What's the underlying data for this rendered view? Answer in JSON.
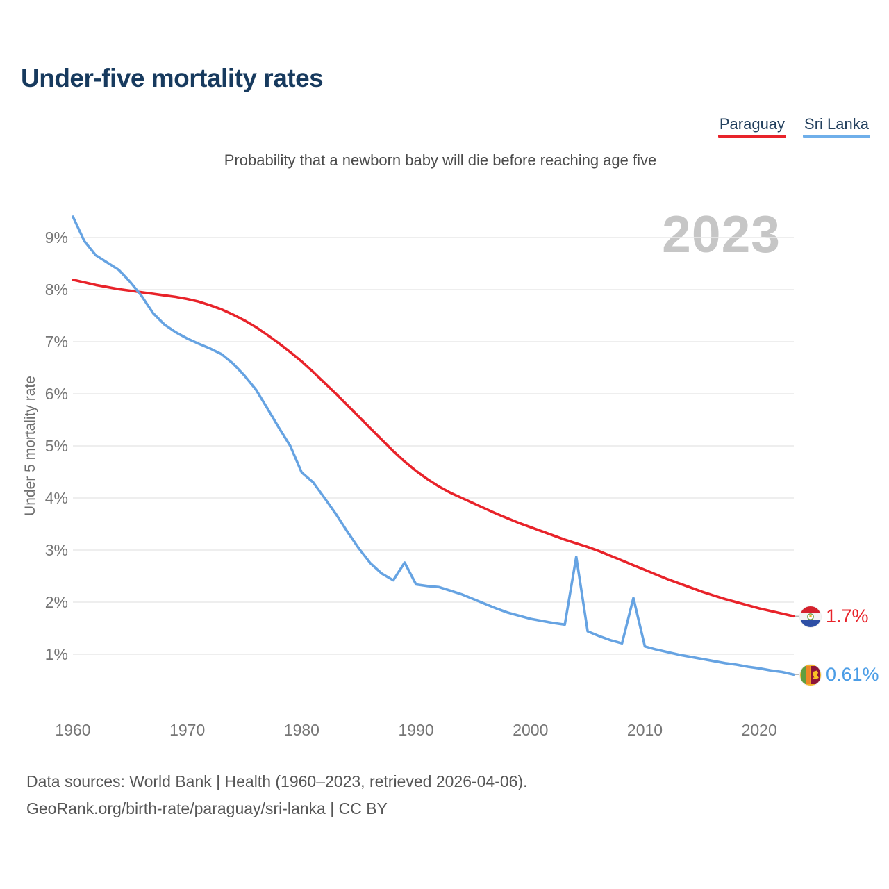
{
  "header": {
    "title": "Under-five mortality rates",
    "subtitle": "Probability that a newborn baby will die before reaching age five"
  },
  "legend": {
    "items": [
      {
        "label": "Paraguay",
        "color": "#e8232a"
      },
      {
        "label": "Sri Lanka",
        "color": "#6fafea"
      }
    ]
  },
  "chart": {
    "watermark_year": "2023",
    "y_axis_label": "Under 5 mortality rate"
  },
  "end_labels": {
    "paraguay": {
      "value_label": "1.7%",
      "color": "#e8232a",
      "flag_icon": "paraguay-flag"
    },
    "sri_lanka": {
      "value_label": "0.61%",
      "color": "#4b9de6",
      "flag_icon": "sri-lanka-flag"
    }
  },
  "footer": {
    "line1": "Data sources: World Bank | Health (1960–2023, retrieved 2026-04-06).",
    "line2": "GeoRank.org/birth-rate/paraguay/sri-lanka | CC BY"
  },
  "chart_data": {
    "type": "line",
    "title": "Under-five mortality rates",
    "subtitle": "Probability that a newborn baby will die before reaching age five",
    "xlabel": "",
    "ylabel": "Under 5 mortality rate",
    "ylim": [
      0.4,
      9.6
    ],
    "xlim": [
      1960,
      2023
    ],
    "grid": "horizontal",
    "legend_position": "top-right",
    "yticks": {
      "values": [
        1,
        2,
        3,
        4,
        5,
        6,
        7,
        8,
        9
      ],
      "labels": [
        "1%",
        "2%",
        "3%",
        "4%",
        "5%",
        "6%",
        "7%",
        "8%",
        "9%"
      ]
    },
    "xticks": {
      "values": [
        1960,
        1970,
        1980,
        1990,
        2000,
        2010,
        2020
      ],
      "labels": [
        "1960",
        "1970",
        "1980",
        "1990",
        "2000",
        "2010",
        "2020"
      ]
    },
    "x": [
      1960,
      1961,
      1962,
      1963,
      1964,
      1965,
      1966,
      1967,
      1968,
      1969,
      1970,
      1971,
      1972,
      1973,
      1974,
      1975,
      1976,
      1977,
      1978,
      1979,
      1980,
      1981,
      1982,
      1983,
      1984,
      1985,
      1986,
      1987,
      1988,
      1989,
      1990,
      1991,
      1992,
      1993,
      1994,
      1995,
      1996,
      1997,
      1998,
      1999,
      2000,
      2001,
      2002,
      2003,
      2004,
      2005,
      2006,
      2007,
      2008,
      2009,
      2010,
      2011,
      2012,
      2013,
      2014,
      2015,
      2016,
      2017,
      2018,
      2019,
      2020,
      2021,
      2022,
      2023
    ],
    "series": [
      {
        "name": "Paraguay",
        "color": "#e8232a",
        "end_label": "1.7%",
        "values": [
          8.19,
          8.14,
          8.09,
          8.05,
          8.01,
          7.98,
          7.95,
          7.92,
          7.89,
          7.86,
          7.82,
          7.77,
          7.7,
          7.62,
          7.52,
          7.41,
          7.28,
          7.13,
          6.97,
          6.8,
          6.62,
          6.42,
          6.21,
          6.0,
          5.78,
          5.56,
          5.34,
          5.12,
          4.9,
          4.7,
          4.52,
          4.36,
          4.22,
          4.1,
          4.0,
          3.9,
          3.8,
          3.7,
          3.61,
          3.52,
          3.44,
          3.36,
          3.28,
          3.2,
          3.13,
          3.06,
          2.98,
          2.89,
          2.8,
          2.71,
          2.62,
          2.53,
          2.44,
          2.36,
          2.28,
          2.2,
          2.13,
          2.06,
          2.0,
          1.94,
          1.88,
          1.83,
          1.78,
          1.73
        ]
      },
      {
        "name": "Sri Lanka",
        "color": "#66a3e2",
        "end_label": "0.61%",
        "values": [
          9.4,
          8.93,
          8.66,
          8.52,
          8.38,
          8.15,
          7.88,
          7.55,
          7.33,
          7.18,
          7.06,
          6.96,
          6.87,
          6.76,
          6.58,
          6.35,
          6.08,
          5.72,
          5.35,
          5.0,
          4.49,
          4.3,
          4.0,
          3.69,
          3.35,
          3.03,
          2.75,
          2.55,
          2.42,
          2.76,
          2.34,
          2.31,
          2.29,
          2.22,
          2.15,
          2.06,
          1.97,
          1.88,
          1.8,
          1.74,
          1.68,
          1.64,
          1.6,
          1.57,
          2.87,
          1.44,
          1.35,
          1.27,
          1.21,
          2.08,
          1.15,
          1.09,
          1.04,
          0.99,
          0.95,
          0.91,
          0.87,
          0.83,
          0.8,
          0.76,
          0.73,
          0.69,
          0.66,
          0.61
        ]
      }
    ]
  }
}
